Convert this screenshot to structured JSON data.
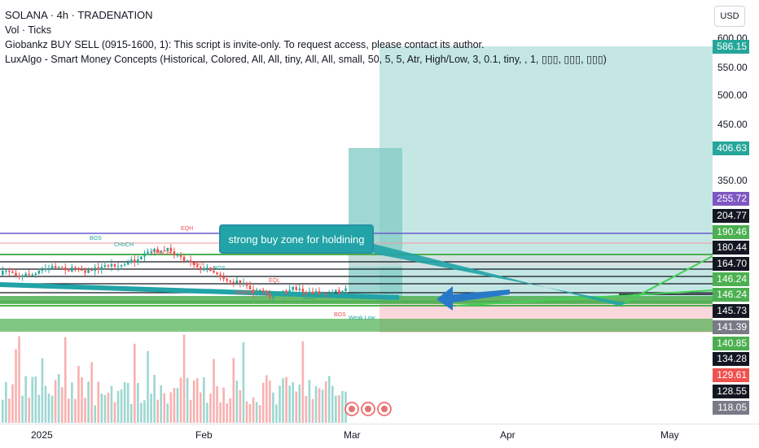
{
  "legend": {
    "symbol": "SOLANA · 4h · TRADENATION",
    "volume": "Vol · Ticks",
    "indicator1": "Giobankz BUY SELL (0915-1600, 1): This script is invite-only. To request access, please contact its author.",
    "indicator2": "LuxAlgo - Smart Money Concepts (Historical, Colored, All, All, tiny, All, All, small, 50, 5, 5, Atr, High/Low, 3, 0.1, tiny, , 1, ▯▯▯, ▯▯▯, ▯▯▯)"
  },
  "currency_button": "USD",
  "annotation": "strong buy zone for holdining",
  "colors": {
    "green_zone": "#b2dfdb",
    "green_zone_dark": "#7fcbc4",
    "red_zone": "#f8c9cd",
    "up_candle": "#26a69a",
    "down_candle": "#ef5350",
    "support_band": "#4caf50",
    "purple_line": "#6a5acd",
    "arrow_blue": "#2979c8",
    "callout": "#21a3a7"
  },
  "chart_data": {
    "type": "candlestick",
    "symbol": "SOLANA",
    "timeframe": "4h",
    "y_ticks": [
      "600.00",
      "550.00",
      "500.00",
      "450.00",
      "350.00"
    ],
    "price_labels": [
      {
        "value": "586.15",
        "color": "#26a69a"
      },
      {
        "value": "406.63",
        "color": "#26a69a"
      },
      {
        "value": "255.72",
        "color": "#7e57c2"
      },
      {
        "value": "204.77",
        "color": "#131722"
      },
      {
        "value": "190.46",
        "color": "#4caf50"
      },
      {
        "value": "180.44",
        "color": "#131722"
      },
      {
        "value": "164.70",
        "color": "#131722"
      },
      {
        "value": "146.24",
        "color": "#4caf50"
      },
      {
        "value": "146.24",
        "color": "#4caf50"
      },
      {
        "value": "145.73",
        "color": "#131722"
      },
      {
        "value": "141.39",
        "color": "#787b86"
      },
      {
        "value": "140.85",
        "color": "#4caf50"
      },
      {
        "value": "134.28",
        "color": "#131722"
      },
      {
        "value": "129.61",
        "color": "#ef5350"
      },
      {
        "value": "128.55",
        "color": "#131722"
      },
      {
        "value": "118.05",
        "color": "#787b86"
      }
    ],
    "x_ticks": [
      "2025",
      "Feb",
      "Mar",
      "Apr",
      "May"
    ],
    "smc_labels": [
      "BOS",
      "CHoCH",
      "CHoCH",
      "EQH",
      "BOS",
      "BOS",
      "CHoCH",
      "EQL",
      "BOS",
      "BOS",
      "Weak Low"
    ],
    "zones": [
      {
        "name": "target-zone",
        "from": 146.24,
        "to": 586.15
      },
      {
        "name": "first-target-zone",
        "from": 146.24,
        "to": 406.63
      },
      {
        "name": "stop-zone",
        "from": 129.61,
        "to": 146.24
      }
    ]
  }
}
